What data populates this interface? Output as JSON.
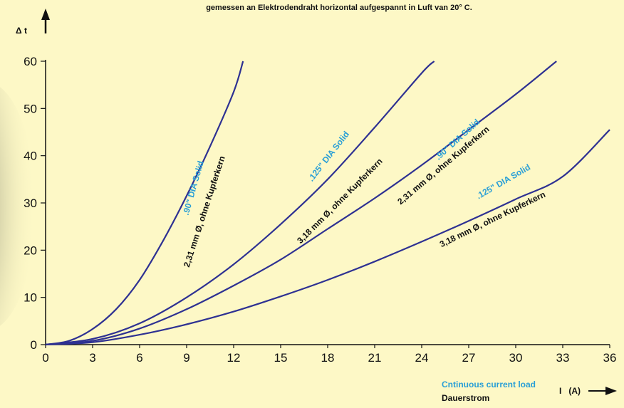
{
  "chart_data": {
    "type": "line",
    "title": "gemessen an Elektrodendraht horizontal aufgespannt in Luft van 20° C.",
    "ylabel": "Δ t",
    "xlabel_en": "Cntinuous current load",
    "xlabel_de": "Dauerstrom",
    "xlabel_unit": "I   (A)",
    "xlim": [
      0,
      36
    ],
    "ylim": [
      0,
      60
    ],
    "xticks": [
      0,
      3,
      6,
      9,
      12,
      15,
      18,
      21,
      24,
      27,
      30,
      33,
      36
    ],
    "yticks": [
      0,
      10,
      20,
      30,
      40,
      50,
      60
    ],
    "series": [
      {
        "name": ".90\" DIA Solid",
        "name_de": "2,31 mm Ø, ohne Kupferkern",
        "x": [
          0,
          1.5,
          3,
          4.5,
          6,
          7.5,
          9,
          10.5,
          12,
          12.6
        ],
        "y": [
          0,
          0.8,
          3.3,
          7.5,
          13.7,
          22,
          31.5,
          42,
          53.5,
          60
        ]
      },
      {
        "name": ".125\" DIA Solid",
        "name_de": "3,18 mm Ø, ohne Kupferkern",
        "x": [
          0,
          3,
          6,
          9,
          12,
          15,
          18,
          21,
          24,
          24.8
        ],
        "y": [
          0,
          1.2,
          4.5,
          10,
          17,
          25.5,
          35,
          46,
          57.5,
          60
        ]
      },
      {
        "name": ".90\" DIA Solid",
        "name_de": "2,31 mm Ø, ohne Kupferkern",
        "x": [
          0,
          3,
          6,
          9,
          12,
          15,
          18,
          21,
          24,
          27,
          30,
          32.6
        ],
        "y": [
          0,
          0.8,
          3.4,
          7.5,
          12.5,
          18,
          24.5,
          31,
          38,
          45.5,
          53,
          60
        ]
      },
      {
        "name": ".125\" DIA Solid",
        "name_de": "3,18 mm Ø, ohne Kupferkern",
        "x": [
          0,
          3,
          6,
          9,
          12,
          15,
          18,
          21,
          24,
          27,
          30,
          33,
          36
        ],
        "y": [
          0,
          0.5,
          2.1,
          4.3,
          7,
          10.2,
          13.7,
          17.6,
          21.8,
          26.2,
          30.8,
          35.6,
          45.5
        ]
      }
    ],
    "labels": [
      {
        "text": ".90\" DIA Solid",
        "style": "blue",
        "x": 9.6,
        "y": 33,
        "angle": -74
      },
      {
        "text": "2,31 mm Ø, ohne Kupferkern",
        "style": "black",
        "x": 10.3,
        "y": 28,
        "angle": -72
      },
      {
        "text": ".125\" DIA Solid",
        "style": "blue",
        "x": 18.2,
        "y": 39.5,
        "angle": -52
      },
      {
        "text": "3,18 mm Ø, ohne Kupferkern",
        "style": "black",
        "x": 18.9,
        "y": 30,
        "angle": -45
      },
      {
        "text": ".90\" DIA Solid",
        "style": "blue",
        "x": 26.4,
        "y": 43,
        "angle": -42
      },
      {
        "text": "2,31 mm Ø, ohne Kupferkern",
        "style": "black",
        "x": 25.5,
        "y": 37.5,
        "angle": -40
      },
      {
        "text": ".125\" DIA Solid",
        "style": "blue",
        "x": 29.3,
        "y": 34,
        "angle": -30
      },
      {
        "text": "3,18 mm Ø, ohne Kupferkern",
        "style": "black",
        "x": 28.6,
        "y": 26,
        "angle": -26
      }
    ],
    "colors": {
      "background": "#fdf8c6",
      "curve": "#2e3192",
      "label_blue": "#2a9fd6",
      "text": "#111111"
    }
  }
}
